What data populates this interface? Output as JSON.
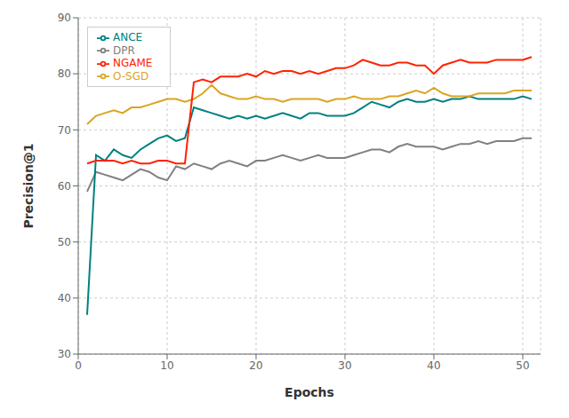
{
  "chart_data": {
    "type": "line",
    "xlabel": "Epochs",
    "ylabel": "Precision@1",
    "x": [
      1,
      2,
      3,
      4,
      5,
      6,
      7,
      8,
      9,
      10,
      11,
      12,
      13,
      14,
      15,
      16,
      17,
      18,
      19,
      20,
      21,
      22,
      23,
      24,
      25,
      26,
      27,
      28,
      29,
      30,
      31,
      32,
      33,
      34,
      35,
      36,
      37,
      38,
      39,
      40,
      41,
      42,
      43,
      44,
      45,
      46,
      47,
      48,
      49,
      50,
      51
    ],
    "series": [
      {
        "name": "DPR",
        "color": "#808080",
        "values": [
          59.0,
          62.5,
          62.0,
          61.5,
          61.0,
          62.0,
          63.0,
          62.5,
          61.5,
          61.0,
          63.5,
          63.0,
          64.0,
          63.5,
          63.0,
          64.0,
          64.5,
          64.0,
          63.5,
          64.5,
          64.5,
          65.0,
          65.5,
          65.0,
          64.5,
          65.0,
          65.5,
          65.0,
          65.0,
          65.0,
          65.5,
          66.0,
          66.5,
          66.5,
          66.0,
          67.0,
          67.5,
          67.0,
          67.0,
          67.0,
          66.5,
          67.0,
          67.5,
          67.5,
          68.0,
          67.5,
          68.0,
          68.0,
          68.0,
          68.5,
          68.5
        ]
      },
      {
        "name": "ANCE",
        "color": "#008080",
        "values": [
          37.0,
          65.5,
          64.5,
          66.5,
          65.5,
          65.0,
          66.5,
          67.5,
          68.5,
          69.0,
          68.0,
          68.5,
          74.0,
          73.5,
          73.0,
          72.5,
          72.0,
          72.5,
          72.0,
          72.5,
          72.0,
          72.5,
          73.0,
          72.5,
          72.0,
          73.0,
          73.0,
          72.5,
          72.5,
          72.5,
          73.0,
          74.0,
          75.0,
          74.5,
          74.0,
          75.0,
          75.5,
          75.0,
          75.0,
          75.5,
          75.0,
          75.5,
          75.5,
          76.0,
          75.5,
          75.5,
          75.5,
          75.5,
          75.5,
          76.0,
          75.5
        ]
      },
      {
        "name": "O-SGD",
        "color": "#DAA520",
        "values": [
          71.0,
          72.5,
          73.0,
          73.5,
          73.0,
          74.0,
          74.0,
          74.5,
          75.0,
          75.5,
          75.5,
          75.0,
          75.5,
          76.5,
          78.0,
          76.5,
          76.0,
          75.5,
          75.5,
          76.0,
          75.5,
          75.5,
          75.0,
          75.5,
          75.5,
          75.5,
          75.5,
          75.0,
          75.5,
          75.5,
          76.0,
          75.5,
          75.5,
          75.5,
          76.0,
          76.0,
          76.5,
          77.0,
          76.5,
          77.5,
          76.5,
          76.0,
          76.0,
          76.0,
          76.5,
          76.5,
          76.5,
          76.5,
          77.0,
          77.0,
          77.0
        ]
      },
      {
        "name": "NGAME",
        "color": "#FF2200",
        "values": [
          64.0,
          64.5,
          64.5,
          64.5,
          64.0,
          64.5,
          64.0,
          64.0,
          64.5,
          64.5,
          64.0,
          64.0,
          78.5,
          79.0,
          78.5,
          79.5,
          79.5,
          79.5,
          80.0,
          79.5,
          80.5,
          80.0,
          80.5,
          80.5,
          80.0,
          80.5,
          80.0,
          80.5,
          81.0,
          81.0,
          81.5,
          82.5,
          82.0,
          81.5,
          81.5,
          82.0,
          82.0,
          81.5,
          81.5,
          80.0,
          81.5,
          82.0,
          82.5,
          82.0,
          82.0,
          82.0,
          82.5,
          82.5,
          82.5,
          82.5,
          83.0
        ]
      }
    ],
    "xlim": [
      0,
      52
    ],
    "ylim": [
      30,
      90
    ],
    "xticks": [
      0,
      10,
      20,
      30,
      40,
      50
    ],
    "yticks": [
      30,
      40,
      50,
      60,
      70,
      80,
      90
    ],
    "grid": true,
    "legend": "upper left"
  }
}
